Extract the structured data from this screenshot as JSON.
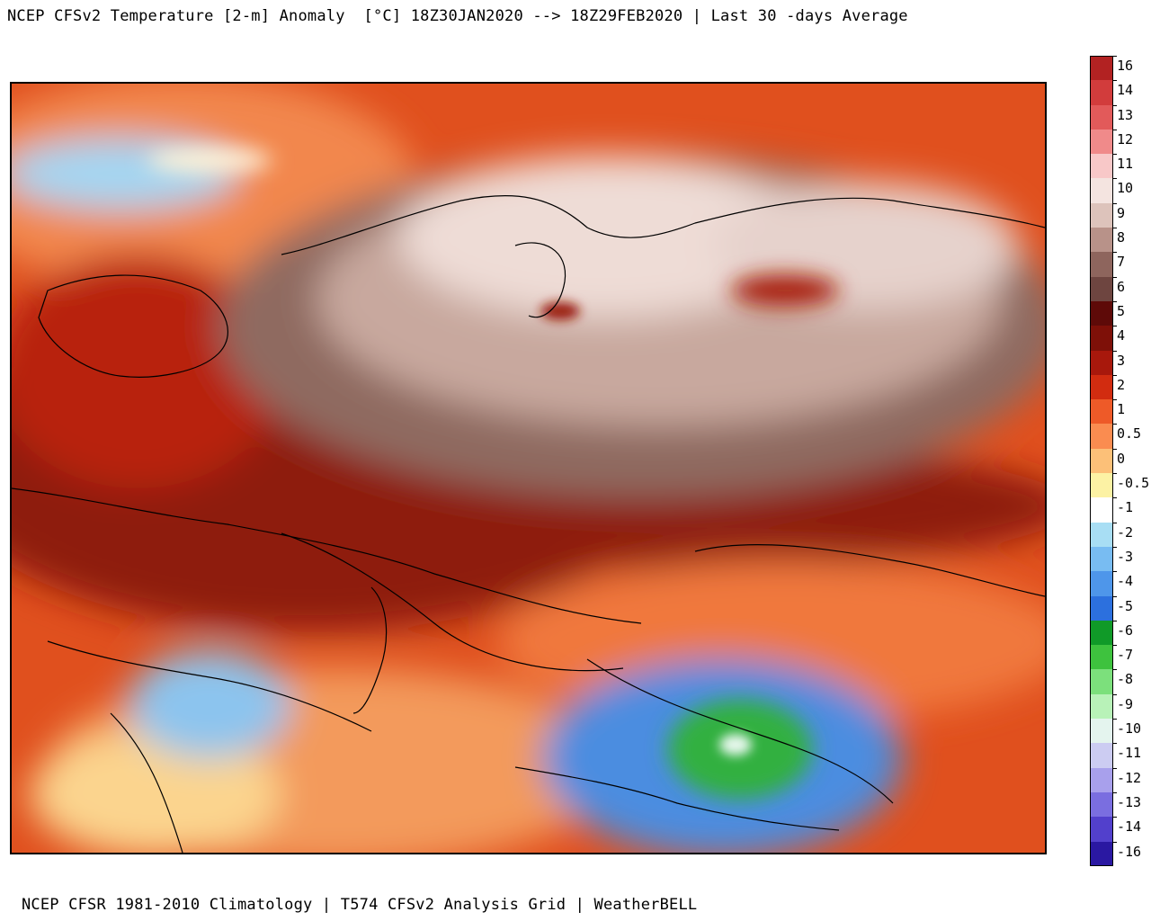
{
  "header": {
    "title": "NCEP CFSv2 Temperature [2-m] Anomaly  [°C] 18Z30JAN2020 --> 18Z29FEB2020 | Last 30 -days Average"
  },
  "footer": {
    "credit": "NCEP CFSR 1981-2010 Climatology | T574 CFSv2 Analysis Grid | WeatherBELL"
  },
  "legend": {
    "unit": "°C",
    "entries": [
      {
        "label": "16",
        "color": "#b22222"
      },
      {
        "label": "14",
        "color": "#d23c3c"
      },
      {
        "label": "13",
        "color": "#e25a5a"
      },
      {
        "label": "12",
        "color": "#f08a8a"
      },
      {
        "label": "11",
        "color": "#f8c8c8"
      },
      {
        "label": "10",
        "color": "#f4e4e0"
      },
      {
        "label": "9",
        "color": "#ddc3bb"
      },
      {
        "label": "8",
        "color": "#b89289"
      },
      {
        "label": "7",
        "color": "#8e655d"
      },
      {
        "label": "6",
        "color": "#6e4540"
      },
      {
        "label": "5",
        "color": "#5e0a08"
      },
      {
        "label": "4",
        "color": "#7e1008"
      },
      {
        "label": "3",
        "color": "#a8180c"
      },
      {
        "label": "2",
        "color": "#d22c10"
      },
      {
        "label": "1",
        "color": "#ee5a28"
      },
      {
        "label": "0.5",
        "color": "#fa8c50"
      },
      {
        "label": "0",
        "color": "#fcc078"
      },
      {
        "label": "-0.5",
        "color": "#fcf2a4"
      },
      {
        "label": "-1",
        "color": "#ffffff"
      },
      {
        "label": "-2",
        "color": "#a8def4"
      },
      {
        "label": "-3",
        "color": "#78bcf2"
      },
      {
        "label": "-4",
        "color": "#4e96ea"
      },
      {
        "label": "-5",
        "color": "#2c70de"
      },
      {
        "label": "-6",
        "color": "#109a28"
      },
      {
        "label": "-7",
        "color": "#3ec23e"
      },
      {
        "label": "-8",
        "color": "#7ce07c"
      },
      {
        "label": "-9",
        "color": "#b8f2b8"
      },
      {
        "label": "-10",
        "color": "#e4f4ee"
      },
      {
        "label": "-11",
        "color": "#ccccf2"
      },
      {
        "label": "-12",
        "color": "#a8a0ec"
      },
      {
        "label": "-13",
        "color": "#7a6ee0"
      },
      {
        "label": "-14",
        "color": "#5240cc"
      },
      {
        "label": "-16",
        "color": "#2a18a2"
      }
    ]
  },
  "colors": {
    "warm_strong": "#8a1a12",
    "warm_mid": "#d8401a",
    "warm_light": "#f28a55",
    "anomaly_peak": "#f3e6e2",
    "cold": "#4a90e0",
    "cold_strong": "#2aa83c",
    "border": "#000000"
  }
}
